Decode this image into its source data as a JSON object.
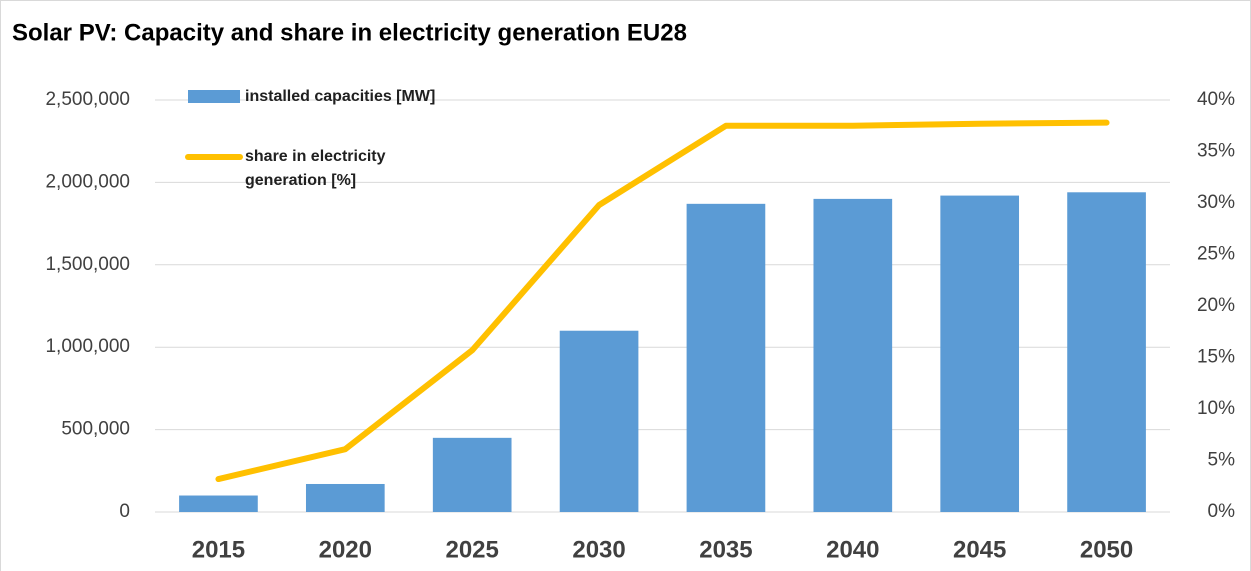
{
  "chart_data": {
    "type": "bar_line",
    "title": "Solar PV: Capacity and share in electricity generation EU28",
    "categories": [
      "2015",
      "2020",
      "2025",
      "2030",
      "2035",
      "2040",
      "2045",
      "2050"
    ],
    "series": [
      {
        "name": "installed capacities [MW]",
        "type": "bar",
        "color": "#5b9bd5",
        "axis": "y",
        "values": [
          100000,
          170000,
          450000,
          1100000,
          1870000,
          1900000,
          1920000,
          1940000
        ]
      },
      {
        "name": "share in electricity generation [%]",
        "type": "line",
        "color": "#ffc000",
        "axis": "y2",
        "values": [
          3.2,
          6.1,
          15.7,
          29.8,
          37.5,
          37.5,
          37.7,
          37.8
        ]
      }
    ],
    "ylim": [
      0,
      2500000
    ],
    "yticks": [
      0,
      {
        "value": 500000,
        "label": "500,000"
      },
      {
        "value": 1000000,
        "label": "1,000,000"
      },
      {
        "value": 1500000,
        "label": "1,500,000"
      },
      {
        "value": 2000000,
        "label": "2,000,000"
      },
      {
        "value": 2500000,
        "label": "2,500,000"
      }
    ],
    "y2lim": [
      0,
      40
    ],
    "y2ticks": [
      {
        "value": 0,
        "label": "0%"
      },
      {
        "value": 5,
        "label": "5%"
      },
      {
        "value": 10,
        "label": "10%"
      },
      {
        "value": 15,
        "label": "15%"
      },
      {
        "value": 20,
        "label": "20%"
      },
      {
        "value": 25,
        "label": "25%"
      },
      {
        "value": 30,
        "label": "30%"
      },
      {
        "value": 35,
        "label": "35%"
      },
      {
        "value": 40,
        "label": "40%"
      }
    ],
    "grid": true,
    "legend": "top-left"
  }
}
